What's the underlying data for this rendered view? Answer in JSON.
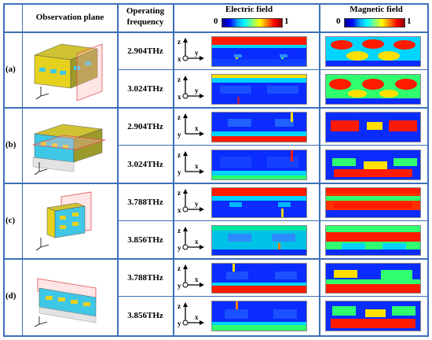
{
  "header": {
    "col1": "Observation plane",
    "col2_line1": "Operating",
    "col2_line2": "frequency",
    "col3": "Electric field",
    "col4": "Magnetic field",
    "scale_min": "0",
    "scale_max": "1"
  },
  "rows": [
    {
      "label": "(a)",
      "freq_top": "2.904THz",
      "freq_bottom": "3.024THz"
    },
    {
      "label": "(b)",
      "freq_top": "2.904THz",
      "freq_bottom": "3.024THz"
    },
    {
      "label": "(c)",
      "freq_top": "3.788THz",
      "freq_bottom": "3.856THz"
    },
    {
      "label": "(d)",
      "freq_top": "3.788THz",
      "freq_bottom": "3.856THz"
    }
  ],
  "axes": {
    "z": "z",
    "y": "y",
    "x": "x"
  },
  "colors": {
    "grid_line": "#3c6fb8",
    "structure_yellow": "#e6d21e",
    "structure_cyan": "#3fc7e6",
    "field_red": "#ff1a00",
    "field_blue": "#0a2cff",
    "field_cyan": "#00d5ff",
    "field_green": "#30ff70"
  }
}
